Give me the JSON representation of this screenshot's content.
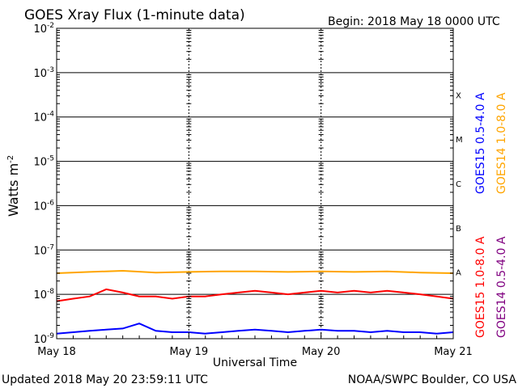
{
  "header": {
    "title": "GOES Xray Flux (1-minute data)",
    "begin": "Begin:  2018 May 18 0000 UTC"
  },
  "footer": {
    "updated": "Updated 2018 May 20 23:59:11 UTC",
    "credit": "NOAA/SWPC Boulder, CO USA"
  },
  "chart_data": {
    "type": "line",
    "title": "GOES Xray Flux (1-minute data)",
    "xlabel": "Universal Time",
    "ylabel": "Watts m-2",
    "y_scale": "log",
    "ylim": [
      1e-09,
      0.01
    ],
    "xlim": [
      0,
      72
    ],
    "x_ticks": [
      {
        "hour": 0,
        "label": "May 18"
      },
      {
        "hour": 24,
        "label": "May 19"
      },
      {
        "hour": 48,
        "label": "May 20"
      },
      {
        "hour": 72,
        "label": "May 21"
      }
    ],
    "y_ticks": [
      {
        "exp": -9,
        "base": "10",
        "sup": "-9"
      },
      {
        "exp": -8,
        "base": "10",
        "sup": "-8"
      },
      {
        "exp": -7,
        "base": "10",
        "sup": "-7"
      },
      {
        "exp": -6,
        "base": "10",
        "sup": "-6"
      },
      {
        "exp": -5,
        "base": "10",
        "sup": "-5"
      },
      {
        "exp": -4,
        "base": "10",
        "sup": "-4"
      },
      {
        "exp": -3,
        "base": "10",
        "sup": "-3"
      },
      {
        "exp": -2,
        "base": "10",
        "sup": "-2"
      }
    ],
    "flare_classes": [
      {
        "label": "A",
        "exp": -8
      },
      {
        "label": "B",
        "exp": -7
      },
      {
        "label": "C",
        "exp": -6
      },
      {
        "label": "M",
        "exp": -5
      },
      {
        "label": "X",
        "exp": -4
      }
    ],
    "grid": true,
    "legend_placement": "right",
    "series": [
      {
        "name": "GOES15 1.0-8.0 A",
        "color": "#ff0000",
        "x": [
          0,
          3,
          6,
          9,
          12,
          15,
          18,
          21,
          24,
          27,
          30,
          33,
          36,
          39,
          42,
          45,
          48,
          51,
          54,
          57,
          60,
          63,
          66,
          69,
          72
        ],
        "values": [
          7e-09,
          8e-09,
          9e-09,
          1.3e-08,
          1.1e-08,
          9e-09,
          9e-09,
          8e-09,
          9e-09,
          9e-09,
          1e-08,
          1.1e-08,
          1.2e-08,
          1.1e-08,
          1e-08,
          1.1e-08,
          1.2e-08,
          1.1e-08,
          1.2e-08,
          1.1e-08,
          1.2e-08,
          1.1e-08,
          1e-08,
          9e-09,
          8e-09
        ]
      },
      {
        "name": "GOES14 1.0-8.0 A",
        "color": "#ffa500",
        "x": [
          0,
          6,
          12,
          18,
          24,
          30,
          36,
          42,
          48,
          54,
          60,
          66,
          72
        ],
        "values": [
          3e-08,
          3.2e-08,
          3.4e-08,
          3.1e-08,
          3.2e-08,
          3.3e-08,
          3.3e-08,
          3.2e-08,
          3.3e-08,
          3.2e-08,
          3.3e-08,
          3.1e-08,
          3e-08
        ]
      },
      {
        "name": "GOES15 0.5-4.0 A",
        "color": "#0000ff",
        "x": [
          0,
          3,
          6,
          9,
          12,
          15,
          18,
          21,
          24,
          27,
          30,
          33,
          36,
          39,
          42,
          45,
          48,
          51,
          54,
          57,
          60,
          63,
          66,
          69,
          72
        ],
        "values": [
          1.3e-09,
          1.4e-09,
          1.5e-09,
          1.6e-09,
          1.7e-09,
          2.2e-09,
          1.5e-09,
          1.4e-09,
          1.4e-09,
          1.3e-09,
          1.4e-09,
          1.5e-09,
          1.6e-09,
          1.5e-09,
          1.4e-09,
          1.5e-09,
          1.6e-09,
          1.5e-09,
          1.5e-09,
          1.4e-09,
          1.5e-09,
          1.4e-09,
          1.4e-09,
          1.3e-09,
          1.4e-09
        ]
      },
      {
        "name": "GOES14 0.5-4.0 A",
        "color": "#800080",
        "x": [
          0,
          72
        ],
        "values": [
          1e-09,
          1e-09
        ]
      }
    ]
  }
}
